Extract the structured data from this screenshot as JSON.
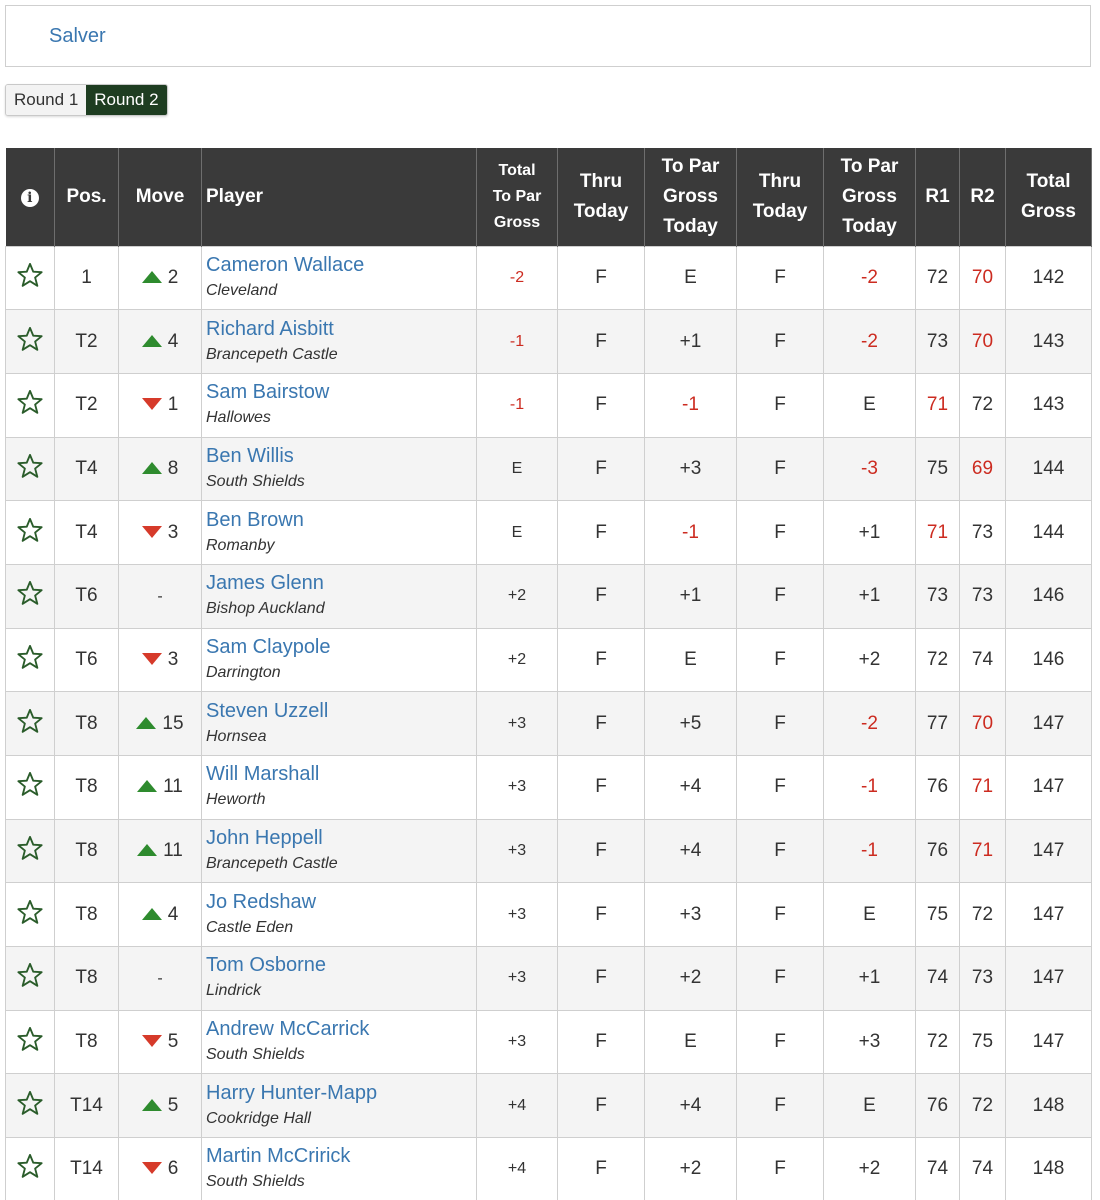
{
  "salver": {
    "label": "Salver"
  },
  "rounds": {
    "tab1": "Round 1",
    "tab2": "Round 2",
    "active": "Round 2"
  },
  "colors": {
    "link": "#3a77b0",
    "header_bg": "#3a3a3a",
    "active_tab": "#1e3d21",
    "under_par": "#cc2b20",
    "up_arrow": "#2e8b2e",
    "down_arrow": "#d63a2a"
  },
  "headers": {
    "info": "i",
    "pos": "Pos.",
    "move": "Move",
    "player": "Player",
    "total_to_par_gross": [
      "Total",
      "To Par",
      "Gross"
    ],
    "thru_today_1": [
      "Thru",
      "Today"
    ],
    "to_par_gross_today_1": [
      "To Par",
      "Gross",
      "Today"
    ],
    "thru_today_2": [
      "Thru",
      "Today"
    ],
    "to_par_gross_today_2": [
      "To Par",
      "Gross",
      "Today"
    ],
    "r1": "R1",
    "r2": "R2",
    "total_gross": [
      "Total",
      "Gross"
    ]
  },
  "rows": [
    {
      "pos": "1",
      "move_dir": "up",
      "move": "2",
      "name": "Cameron Wallace",
      "club": "Cleveland",
      "total_to_par": "-2",
      "thru1": "F",
      "today1": "E",
      "thru2": "F",
      "today2": "-2",
      "r1": "72",
      "r2": "70",
      "total": "142"
    },
    {
      "pos": "T2",
      "move_dir": "up",
      "move": "4",
      "name": "Richard Aisbitt",
      "club": "Brancepeth Castle",
      "total_to_par": "-1",
      "thru1": "F",
      "today1": "+1",
      "thru2": "F",
      "today2": "-2",
      "r1": "73",
      "r2": "70",
      "total": "143"
    },
    {
      "pos": "T2",
      "move_dir": "down",
      "move": "1",
      "name": "Sam Bairstow",
      "club": "Hallowes",
      "total_to_par": "-1",
      "thru1": "F",
      "today1": "-1",
      "thru2": "F",
      "today2": "E",
      "r1": "71",
      "r2": "72",
      "total": "143"
    },
    {
      "pos": "T4",
      "move_dir": "up",
      "move": "8",
      "name": "Ben Willis",
      "club": "South Shields",
      "total_to_par": "E",
      "thru1": "F",
      "today1": "+3",
      "thru2": "F",
      "today2": "-3",
      "r1": "75",
      "r2": "69",
      "total": "144"
    },
    {
      "pos": "T4",
      "move_dir": "down",
      "move": "3",
      "name": "Ben Brown",
      "club": "Romanby",
      "total_to_par": "E",
      "thru1": "F",
      "today1": "-1",
      "thru2": "F",
      "today2": "+1",
      "r1": "71",
      "r2": "73",
      "total": "144"
    },
    {
      "pos": "T6",
      "move_dir": "none",
      "move": "-",
      "name": "James Glenn",
      "club": "Bishop Auckland",
      "total_to_par": "+2",
      "thru1": "F",
      "today1": "+1",
      "thru2": "F",
      "today2": "+1",
      "r1": "73",
      "r2": "73",
      "total": "146"
    },
    {
      "pos": "T6",
      "move_dir": "down",
      "move": "3",
      "name": "Sam Claypole",
      "club": "Darrington",
      "total_to_par": "+2",
      "thru1": "F",
      "today1": "E",
      "thru2": "F",
      "today2": "+2",
      "r1": "72",
      "r2": "74",
      "total": "146"
    },
    {
      "pos": "T8",
      "move_dir": "up",
      "move": "15",
      "name": "Steven Uzzell",
      "club": "Hornsea",
      "total_to_par": "+3",
      "thru1": "F",
      "today1": "+5",
      "thru2": "F",
      "today2": "-2",
      "r1": "77",
      "r2": "70",
      "total": "147"
    },
    {
      "pos": "T8",
      "move_dir": "up",
      "move": "11",
      "name": "Will Marshall",
      "club": "Heworth",
      "total_to_par": "+3",
      "thru1": "F",
      "today1": "+4",
      "thru2": "F",
      "today2": "-1",
      "r1": "76",
      "r2": "71",
      "total": "147"
    },
    {
      "pos": "T8",
      "move_dir": "up",
      "move": "11",
      "name": "John Heppell",
      "club": "Brancepeth Castle",
      "total_to_par": "+3",
      "thru1": "F",
      "today1": "+4",
      "thru2": "F",
      "today2": "-1",
      "r1": "76",
      "r2": "71",
      "total": "147"
    },
    {
      "pos": "T8",
      "move_dir": "up",
      "move": "4",
      "name": "Jo Redshaw",
      "club": "Castle Eden",
      "total_to_par": "+3",
      "thru1": "F",
      "today1": "+3",
      "thru2": "F",
      "today2": "E",
      "r1": "75",
      "r2": "72",
      "total": "147"
    },
    {
      "pos": "T8",
      "move_dir": "none",
      "move": "-",
      "name": "Tom Osborne",
      "club": "Lindrick",
      "total_to_par": "+3",
      "thru1": "F",
      "today1": "+2",
      "thru2": "F",
      "today2": "+1",
      "r1": "74",
      "r2": "73",
      "total": "147"
    },
    {
      "pos": "T8",
      "move_dir": "down",
      "move": "5",
      "name": "Andrew McCarrick",
      "club": "South Shields",
      "total_to_par": "+3",
      "thru1": "F",
      "today1": "E",
      "thru2": "F",
      "today2": "+3",
      "r1": "72",
      "r2": "75",
      "total": "147"
    },
    {
      "pos": "T14",
      "move_dir": "up",
      "move": "5",
      "name": "Harry Hunter-Mapp",
      "club": "Cookridge Hall",
      "total_to_par": "+4",
      "thru1": "F",
      "today1": "+4",
      "thru2": "F",
      "today2": "E",
      "r1": "76",
      "r2": "72",
      "total": "148"
    },
    {
      "pos": "T14",
      "move_dir": "down",
      "move": "6",
      "name": "Martin McCririck",
      "club": "South Shields",
      "total_to_par": "+4",
      "thru1": "F",
      "today1": "+2",
      "thru2": "F",
      "today2": "+2",
      "r1": "74",
      "r2": "74",
      "total": "148"
    }
  ]
}
